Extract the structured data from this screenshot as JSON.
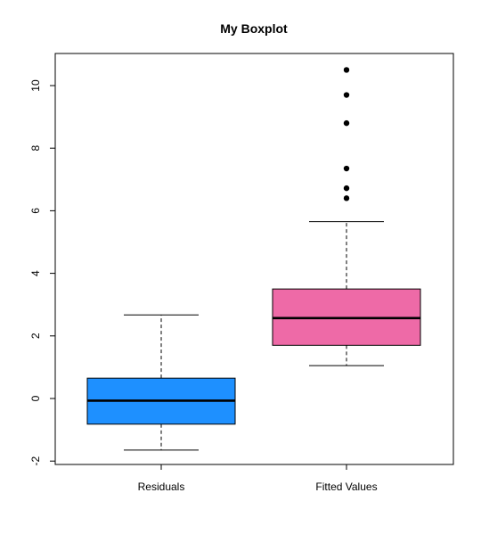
{
  "chart_data": {
    "type": "boxplot",
    "title": "My Boxplot",
    "xlabel": "",
    "ylabel": "",
    "ylim": [
      -2.2,
      11
    ],
    "yticks": [
      -2,
      0,
      2,
      4,
      6,
      8,
      10
    ],
    "grid": false,
    "categories": [
      "Residuals",
      "Fitted Values"
    ],
    "boxes": [
      {
        "label": "Residuals",
        "color": "#1E90FF",
        "whisker_low": -1.65,
        "q1": -0.82,
        "median": -0.07,
        "q3": 0.65,
        "whisker_high": 2.67,
        "outliers": []
      },
      {
        "label": "Fitted Values",
        "color": "#EE6AA7",
        "whisker_low": 1.05,
        "q1": 1.7,
        "median": 2.57,
        "q3": 3.5,
        "whisker_high": 5.65,
        "outliers": [
          6.4,
          6.72,
          7.35,
          8.8,
          9.7,
          10.5
        ]
      }
    ]
  }
}
